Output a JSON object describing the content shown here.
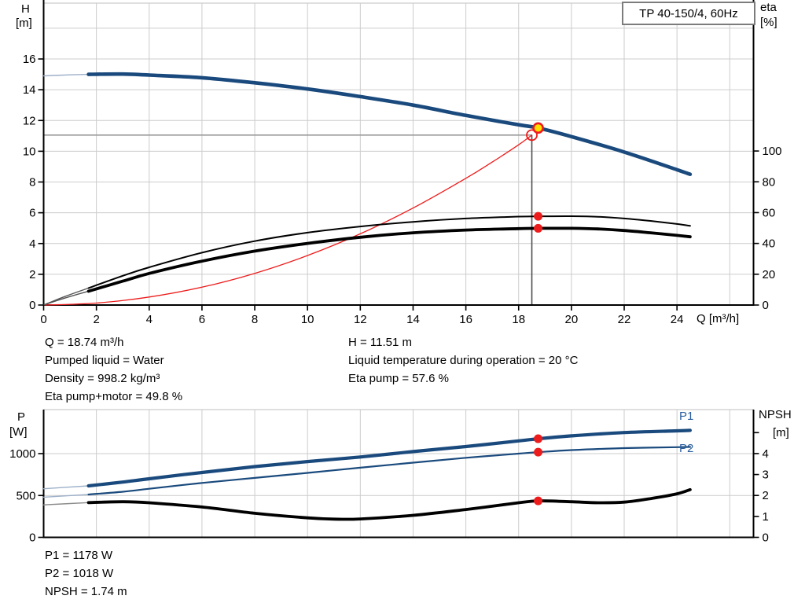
{
  "colors": {
    "curve_blue": "#1a4a7d",
    "pale_blue": "#9db0c9",
    "marker_red": "#ed1c1c",
    "marker_yellow": "#ffe000",
    "label_blue": "#2a5d9f",
    "grid": "#cccccc",
    "crosshair_h": "#9a9a9a",
    "crosshair_v": "#4d4d4d",
    "axis": "#000000"
  },
  "chart_data": [
    {
      "type": "line",
      "name": "h-q-chart",
      "title": "TP 40-150/4, 60Hz",
      "xlabel": "Q [m³/h]",
      "ylabel_left_1": "H",
      "ylabel_left_2": "[m]",
      "ylabel_right_1": "eta",
      "ylabel_right_2": "[%]",
      "x_range": [
        0,
        26.9
      ],
      "x_ticks": [
        0,
        2,
        4,
        6,
        8,
        10,
        12,
        14,
        16,
        18,
        20,
        22,
        24
      ],
      "grid_axis": "H",
      "axes": {
        "H": {
          "side": "left",
          "range": [
            0,
            19.63
          ],
          "ticks": [
            0,
            2,
            4,
            6,
            8,
            10,
            12,
            14,
            16
          ]
        },
        "eta": {
          "side": "right",
          "range": [
            0,
            196
          ],
          "ticks": [
            0,
            20,
            40,
            60,
            80,
            100
          ]
        }
      },
      "series": [
        {
          "name": "system-curve",
          "axis": "H",
          "color": "#ed1c1c",
          "width": 1.3,
          "points": [
            [
              0,
              0
            ],
            [
              2,
              0.13
            ],
            [
              4,
              0.52
            ],
            [
              6,
              1.16
            ],
            [
              8,
              2.06
            ],
            [
              10,
              3.22
            ],
            [
              12,
              4.63
            ],
            [
              14,
              6.31
            ],
            [
              16,
              8.24
            ],
            [
              17,
              9.3
            ],
            [
              18,
              10.42
            ],
            [
              18.5,
              11.05
            ]
          ]
        },
        {
          "name": "eta-pump-curve",
          "axis": "eta",
          "color": "#000000",
          "width": 2,
          "thin_until": 1.7,
          "thin_color": "#555555",
          "points": [
            [
              0,
              0
            ],
            [
              0.8,
              5.5
            ],
            [
              1.7,
              11
            ],
            [
              3,
              19
            ],
            [
              4,
              24.5
            ],
            [
              6,
              34
            ],
            [
              8,
              41.5
            ],
            [
              10,
              47
            ],
            [
              12,
              51
            ],
            [
              14,
              54
            ],
            [
              16,
              56.2
            ],
            [
              18,
              57.4
            ],
            [
              18.74,
              57.6
            ],
            [
              20,
              57.7
            ],
            [
              21,
              57.3
            ],
            [
              22,
              56.2
            ],
            [
              23,
              54.6
            ],
            [
              24,
              52.6
            ],
            [
              24.5,
              51.4
            ]
          ]
        },
        {
          "name": "eta-pump-motor-curve",
          "axis": "eta",
          "color": "#000000",
          "width": 3.8,
          "thin_until": 1.7,
          "thin_color": "#555555",
          "points": [
            [
              0,
              0
            ],
            [
              0.8,
              4.5
            ],
            [
              1.7,
              9
            ],
            [
              3,
              15.5
            ],
            [
              4,
              20.5
            ],
            [
              6,
              28.5
            ],
            [
              8,
              35
            ],
            [
              10,
              40
            ],
            [
              12,
              44
            ],
            [
              14,
              46.9
            ],
            [
              16,
              48.7
            ],
            [
              18,
              49.6
            ],
            [
              18.74,
              49.8
            ],
            [
              20,
              49.8
            ],
            [
              21,
              49.4
            ],
            [
              22,
              48.4
            ],
            [
              23,
              46.9
            ],
            [
              24,
              45.2
            ],
            [
              24.5,
              44.3
            ]
          ]
        },
        {
          "name": "head-curve",
          "axis": "H",
          "color": "#1a4a7d",
          "width": 4.6,
          "thin_until": 1.7,
          "thin_color": "#9db0c9",
          "points": [
            [
              0,
              14.9
            ],
            [
              1,
              14.97
            ],
            [
              1.7,
              15.0
            ],
            [
              3,
              15.02
            ],
            [
              4,
              14.95
            ],
            [
              6,
              14.78
            ],
            [
              8,
              14.45
            ],
            [
              10,
              14.05
            ],
            [
              12,
              13.55
            ],
            [
              14,
              13.0
            ],
            [
              16,
              12.33
            ],
            [
              18,
              11.72
            ],
            [
              18.74,
              11.51
            ],
            [
              20,
              10.95
            ],
            [
              22,
              9.95
            ],
            [
              24,
              8.8
            ],
            [
              24.5,
              8.5
            ]
          ]
        }
      ],
      "crosshair": {
        "q": 18.5,
        "axis": "H",
        "v": 11.05
      },
      "markers": [
        {
          "name": "requested-duty-point",
          "axis": "H",
          "q": 18.5,
          "v": 11.05,
          "style": "open",
          "stroke": "#ed1c1c",
          "r": 6.5
        },
        {
          "name": "duty-point",
          "axis": "H",
          "q": 18.74,
          "v": 11.51,
          "style": "filled",
          "fill": "#ffe000",
          "stroke": "#ed1c1c",
          "r": 6
        },
        {
          "name": "eta-pump-point",
          "axis": "eta",
          "q": 18.74,
          "v": 57.6,
          "style": "dot",
          "fill": "#ed1c1c",
          "r": 5.5
        },
        {
          "name": "eta-pump-motor-point",
          "axis": "eta",
          "q": 18.74,
          "v": 49.8,
          "style": "dot",
          "fill": "#ed1c1c",
          "r": 5.5
        }
      ]
    },
    {
      "type": "line",
      "name": "power-npsh-chart",
      "title": "",
      "xlabel": "",
      "ylabel_left_1": "P",
      "ylabel_left_2": "[W]",
      "ylabel_right_1": "NPSH",
      "ylabel_right_2": "[m]",
      "x_range": [
        0,
        26.9
      ],
      "x_ticks": [],
      "grid_axis": "P",
      "axes": {
        "P": {
          "side": "left",
          "range": [
            0,
            1526
          ],
          "ticks": [
            0,
            500,
            1000
          ]
        },
        "NPSH": {
          "side": "right",
          "range": [
            0,
            6.1
          ],
          "ticks": [
            0,
            1,
            2,
            3,
            4,
            5
          ],
          "labeled_ticks": [
            0,
            1,
            2,
            3,
            4
          ]
        }
      },
      "series": [
        {
          "name": "p1-curve",
          "label": "P1",
          "axis": "P",
          "color": "#1a4a7d",
          "width": 4.2,
          "thin_until": 1.7,
          "thin_color": "#9db0c9",
          "points": [
            [
              0,
              580
            ],
            [
              1.7,
              615
            ],
            [
              3,
              660
            ],
            [
              4,
              700
            ],
            [
              6,
              775
            ],
            [
              8,
              845
            ],
            [
              10,
              905
            ],
            [
              12,
              960
            ],
            [
              14,
              1025
            ],
            [
              16,
              1085
            ],
            [
              18,
              1152
            ],
            [
              18.74,
              1178
            ],
            [
              20,
              1212
            ],
            [
              22,
              1252
            ],
            [
              24,
              1272
            ],
            [
              24.5,
              1278
            ]
          ]
        },
        {
          "name": "p2-curve",
          "label": "P2",
          "axis": "P",
          "color": "#1a4a7d",
          "width": 2.2,
          "thin_until": 1.7,
          "thin_color": "#9db0c9",
          "points": [
            [
              0,
              480
            ],
            [
              1.7,
              512
            ],
            [
              3,
              545
            ],
            [
              4,
              580
            ],
            [
              6,
              650
            ],
            [
              8,
              710
            ],
            [
              10,
              770
            ],
            [
              12,
              832
            ],
            [
              14,
              892
            ],
            [
              16,
              950
            ],
            [
              18,
              1000
            ],
            [
              18.74,
              1018
            ],
            [
              20,
              1042
            ],
            [
              22,
              1066
            ],
            [
              24,
              1077
            ],
            [
              24.5,
              1080
            ]
          ]
        },
        {
          "name": "npsh-curve",
          "label": "NPSH",
          "axis": "NPSH",
          "color": "#000000",
          "width": 3.8,
          "thin_until": 1.7,
          "thin_color": "#8a8a8a",
          "points": [
            [
              0,
              1.55
            ],
            [
              1.7,
              1.66
            ],
            [
              3,
              1.7
            ],
            [
              4,
              1.65
            ],
            [
              6,
              1.45
            ],
            [
              8,
              1.15
            ],
            [
              10,
              0.93
            ],
            [
              11,
              0.87
            ],
            [
              12,
              0.88
            ],
            [
              14,
              1.05
            ],
            [
              16,
              1.33
            ],
            [
              18,
              1.65
            ],
            [
              18.74,
              1.74
            ],
            [
              20,
              1.7
            ],
            [
              21,
              1.65
            ],
            [
              22,
              1.68
            ],
            [
              23,
              1.85
            ],
            [
              24,
              2.08
            ],
            [
              24.5,
              2.28
            ]
          ]
        }
      ],
      "markers": [
        {
          "name": "p1-point",
          "axis": "P",
          "q": 18.74,
          "v": 1178,
          "style": "dot",
          "fill": "#ed1c1c",
          "r": 5.5
        },
        {
          "name": "p2-point",
          "axis": "P",
          "q": 18.74,
          "v": 1018,
          "style": "dot",
          "fill": "#ed1c1c",
          "r": 5.5
        },
        {
          "name": "npsh-point",
          "axis": "NPSH",
          "q": 18.74,
          "v": 1.74,
          "style": "dot",
          "fill": "#ed1c1c",
          "r": 5.5
        }
      ]
    }
  ],
  "info_block": {
    "left": [
      "Q = 18.74 m³/h",
      "Pumped liquid = Water",
      "Density = 998.2 kg/m³",
      "Eta pump+motor = 49.8 %"
    ],
    "right": [
      "H = 11.51 m",
      "Liquid temperature during operation = 20 °C",
      "Eta pump = 57.6 %"
    ]
  },
  "result_block": [
    "P1 = 1178 W",
    "P2 = 1018 W",
    "NPSH = 1.74 m"
  ]
}
